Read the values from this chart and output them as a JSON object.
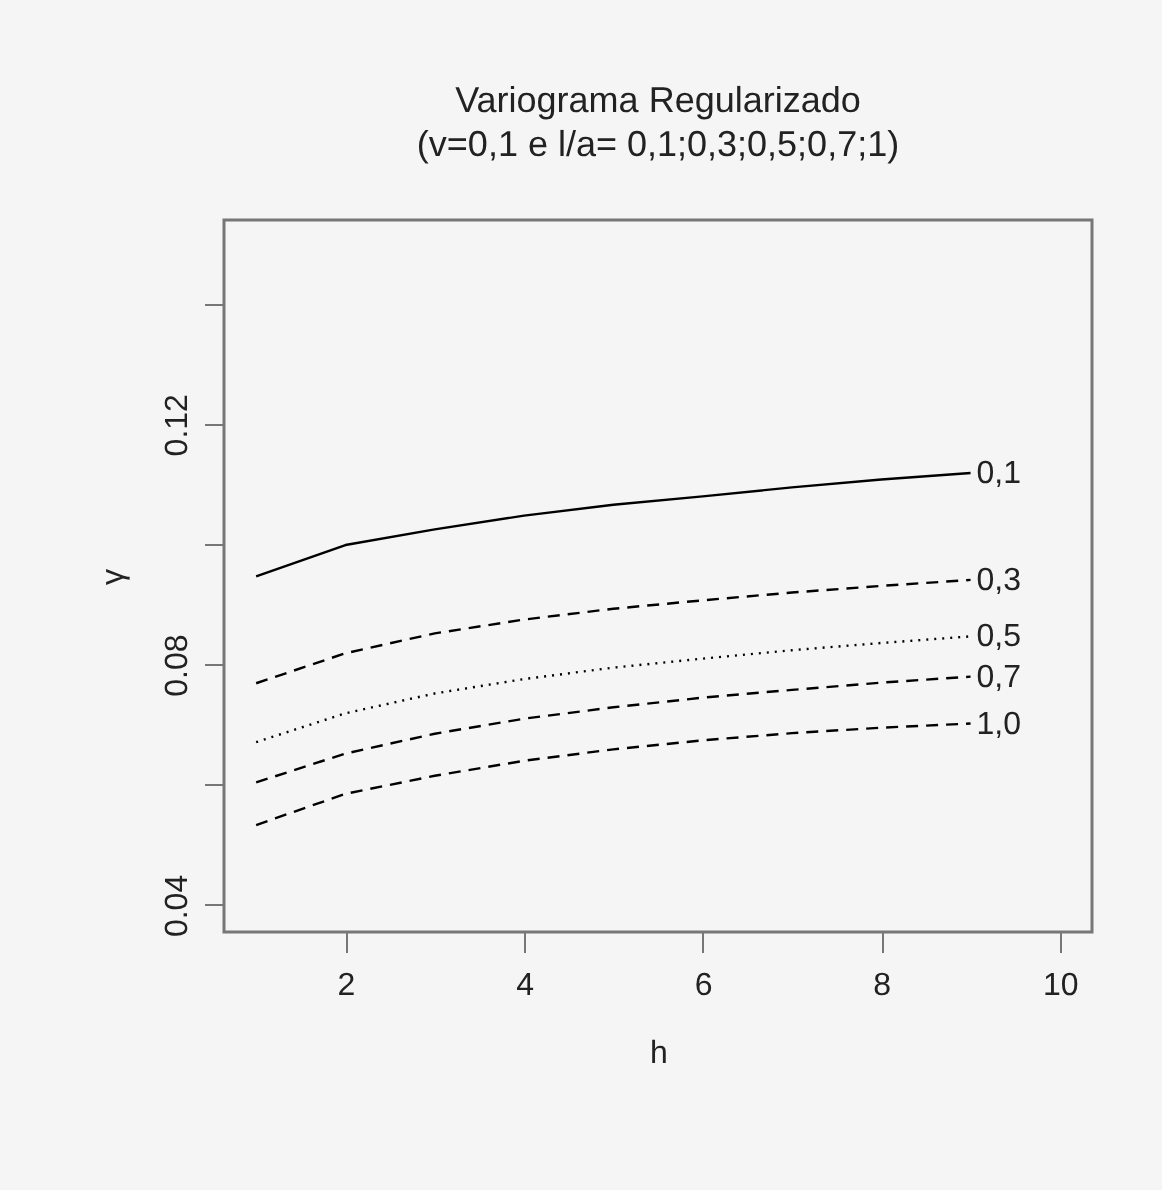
{
  "chart_data": {
    "type": "line",
    "title": "Variograma Regularizado",
    "subtitle": "(v=0,1 e l/a= 0,1;0,3;0,5;0,7;1)",
    "xlabel": "h",
    "ylabel": "γ",
    "x": [
      1,
      2,
      3,
      4,
      5,
      6,
      7,
      8,
      9
    ],
    "series": [
      {
        "name": "0,1",
        "color": "#000000",
        "line_style": "solid",
        "values": [
          0.0947,
          0.0999,
          0.1025,
          0.1048,
          0.1066,
          0.108,
          0.1095,
          0.1108,
          0.1119
        ]
      },
      {
        "name": "0,3",
        "color": "#000000",
        "line_style": "dashed",
        "values": [
          0.0769,
          0.0819,
          0.0852,
          0.0875,
          0.0893,
          0.0907,
          0.092,
          0.0931,
          0.0941
        ]
      },
      {
        "name": "0,5",
        "color": "#000000",
        "line_style": "dotted",
        "values": [
          0.0671,
          0.0719,
          0.0752,
          0.0776,
          0.0795,
          0.081,
          0.0824,
          0.0836,
          0.0847
        ]
      },
      {
        "name": "0,7",
        "color": "#000000",
        "line_style": "dashed",
        "values": [
          0.0604,
          0.0652,
          0.0685,
          0.071,
          0.0729,
          0.0745,
          0.0758,
          0.077,
          0.078
        ]
      },
      {
        "name": "1,0",
        "color": "#000000",
        "line_style": "dashed",
        "values": [
          0.0533,
          0.0585,
          0.0615,
          0.064,
          0.0659,
          0.0674,
          0.0686,
          0.0695,
          0.0702
        ]
      }
    ],
    "xlim": [
      0.64,
      10.36
    ],
    "xticks": [
      2,
      4,
      6,
      8,
      10
    ],
    "ylim": [
      0.0355,
      0.154
    ],
    "yticks": [
      0.04,
      {
        "value": 0.06,
        "label": null
      },
      0.08,
      {
        "value": 0.1,
        "label": null
      },
      0.12,
      {
        "value": 0.14,
        "label": null
      }
    ],
    "marker": "none"
  }
}
